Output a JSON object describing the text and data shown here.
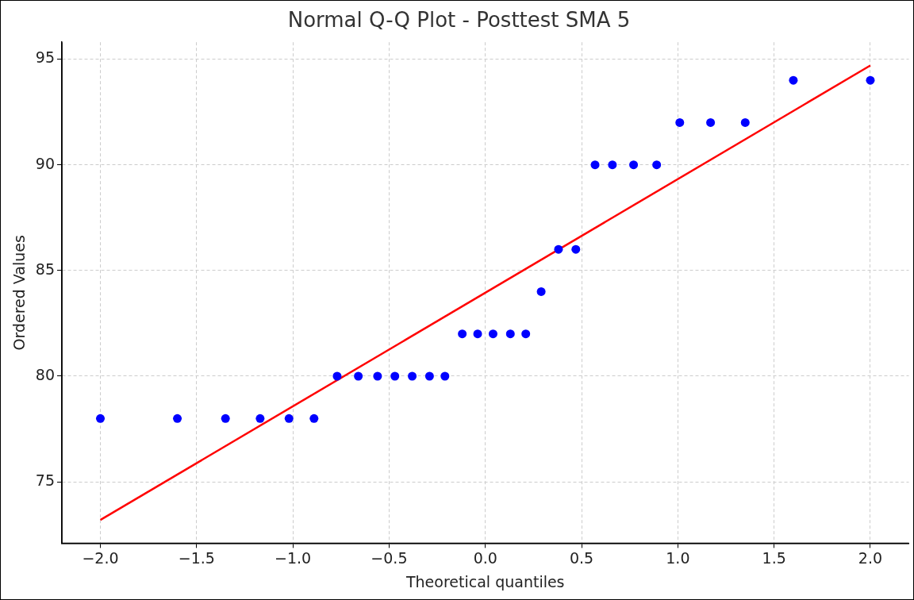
{
  "chart_data": {
    "type": "scatter",
    "title": "Normal Q-Q Plot - Posttest SMA 5",
    "xlabel": "Theoretical quantiles",
    "ylabel": "Ordered Values",
    "series": [
      {
        "type": "scatter",
        "color": "#0000ff",
        "marker": "circle",
        "x": [
          -2.0,
          -1.6,
          -1.35,
          -1.17,
          -1.02,
          -0.89,
          -0.77,
          -0.66,
          -0.56,
          -0.47,
          -0.38,
          -0.29,
          -0.21,
          -0.12,
          -0.04,
          0.04,
          0.13,
          0.21,
          0.29,
          0.38,
          0.47,
          0.57,
          0.66,
          0.77,
          0.89,
          1.01,
          1.17,
          1.35,
          1.6,
          2.0
        ],
        "values": [
          78,
          78,
          78,
          78,
          78,
          78,
          80,
          80,
          80,
          80,
          80,
          80,
          80,
          82,
          82,
          82,
          82,
          82,
          84,
          86,
          86,
          90,
          90,
          90,
          90,
          92,
          92,
          92,
          94,
          94
        ]
      },
      {
        "type": "line",
        "color": "#ff0000",
        "marker": "none",
        "line_style": "solid",
        "x": [
          -2.0,
          2.0
        ],
        "values": [
          73.2,
          94.7
        ]
      }
    ],
    "xlim": [
      -2.2,
      2.2
    ],
    "xticks": [
      {
        "value": -2,
        "label": "−2.0"
      },
      {
        "value": -1.5,
        "label": "−1.5"
      },
      {
        "value": -1,
        "label": "−1.0"
      },
      {
        "value": -0.5,
        "label": "−0.5"
      },
      {
        "value": 0,
        "label": "0.0"
      },
      {
        "value": 0.5,
        "label": "0.5"
      },
      {
        "value": 1,
        "label": "1.0"
      },
      {
        "value": 1.5,
        "label": "1.5"
      },
      {
        "value": 2,
        "label": "2.0"
      }
    ],
    "ylim": [
      72.1,
      95.8
    ],
    "yticks": [
      75,
      80,
      85,
      90,
      95
    ],
    "grid": true,
    "legend": false
  }
}
